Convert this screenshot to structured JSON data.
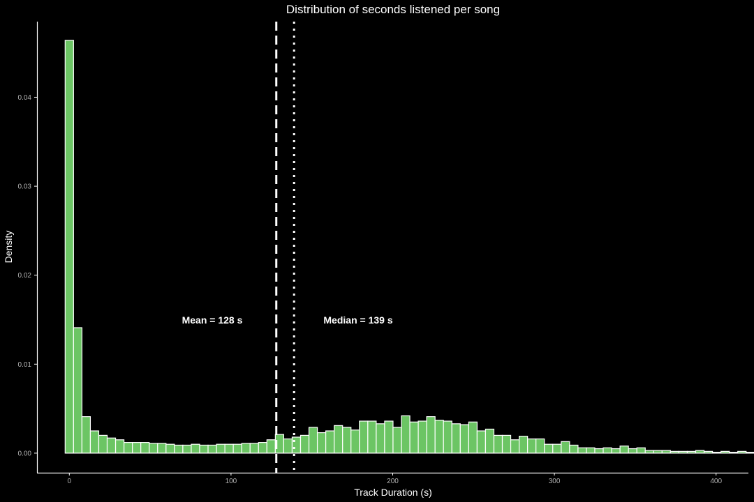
{
  "chart_data": {
    "type": "bar",
    "subtype": "histogram",
    "title": "Distribution of seconds listened per song",
    "xlabel": "Track Duration (s)",
    "ylabel": "Density",
    "xlim": [
      -20,
      420
    ],
    "ylim": [
      -0.0022,
      0.0485
    ],
    "x_ticks": [
      0,
      100,
      200,
      300,
      400
    ],
    "y_ticks": [
      0.0,
      0.01,
      0.02,
      0.03,
      0.04
    ],
    "y_tick_labels": [
      "0.00",
      "0.01",
      "0.02",
      "0.03",
      "0.04"
    ],
    "bin_width": 5.2,
    "bin_start": -2.6,
    "values": [
      0.0464,
      0.0141,
      0.0041,
      0.0025,
      0.002,
      0.0017,
      0.0015,
      0.0012,
      0.0012,
      0.0012,
      0.0011,
      0.0011,
      0.001,
      0.0009,
      0.0009,
      0.001,
      0.0009,
      0.0009,
      0.001,
      0.001,
      0.001,
      0.0011,
      0.0011,
      0.0012,
      0.0015,
      0.0021,
      0.0016,
      0.0018,
      0.002,
      0.0029,
      0.0023,
      0.0025,
      0.0031,
      0.0029,
      0.0026,
      0.0036,
      0.0036,
      0.0033,
      0.0036,
      0.0029,
      0.0042,
      0.0035,
      0.0036,
      0.0041,
      0.0037,
      0.0036,
      0.0033,
      0.0032,
      0.0035,
      0.0025,
      0.0027,
      0.002,
      0.002,
      0.0015,
      0.0019,
      0.0016,
      0.0016,
      0.001,
      0.001,
      0.0013,
      0.0009,
      0.0006,
      0.0006,
      0.0005,
      0.0006,
      0.0005,
      0.0008,
      0.0005,
      0.0006,
      0.0003,
      0.0003,
      0.0003,
      0.0002,
      0.0002,
      0.0002,
      0.0003,
      0.0002,
      0.0001,
      0.0002,
      0.0001,
      0.0002,
      0.0001,
      0.0001,
      0.0001,
      0.0002
    ],
    "bar_color": "#6cc564",
    "bar_outline": "#ffffff",
    "background": "#000000",
    "grid": false,
    "legend": "none",
    "reference_lines": [
      {
        "label": "Mean = 128 s",
        "x": 128,
        "style": "dashed"
      },
      {
        "label": "Median = 139 s",
        "x": 139,
        "style": "dotted"
      }
    ]
  }
}
